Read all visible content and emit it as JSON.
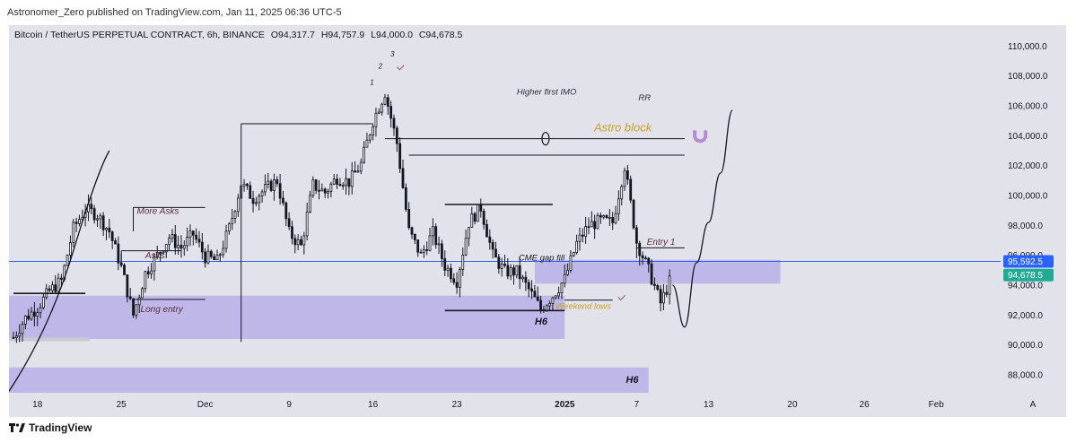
{
  "publisher": "Astronomer_Zero published on TradingView.com, Jan 11, 2025 06:36 UTC-5",
  "symbol": {
    "name": "Bitcoin / TetherUS PERPETUAL CONTRACT, 6h, BINANCE",
    "open": "O94,317.7",
    "high": "H94,757.9",
    "low": "L94,000.0",
    "close": "C94,678.5"
  },
  "footer": {
    "brand": "TradingView",
    "logo_icon": "tradingview-logo-icon"
  },
  "price_labels": {
    "line": {
      "text": "95,592.5",
      "value": 95592.5,
      "color": "#2962ff"
    },
    "last": {
      "text": "94,678.5",
      "value": 94678.5,
      "color": "#22ab94"
    }
  },
  "colors": {
    "up": "#ffffff",
    "down": "#131722",
    "zone": "#b3a8e6",
    "astro": "#c9a227",
    "magnet": "#b48ad6"
  },
  "annotations": {
    "more_asks": "More Asks",
    "asks": "Asks",
    "long_entry": "Long entry",
    "higher_first_imo": "Higher first IMO",
    "rr": "RR",
    "astro_block": "Astro block",
    "cme_gap_fill": "CME gap fill",
    "weekend_lows": "Weekend lows",
    "entry_1": "Entry 1",
    "h6_a": "H6",
    "h6_b": "H6",
    "wave_1": "1",
    "wave_2": "2",
    "wave_3": "3"
  },
  "chart_data": {
    "type": "candlestick",
    "title": "Bitcoin / TetherUS PERPETUAL CONTRACT, 6h, BINANCE",
    "x_ticks": [
      "18",
      "25",
      "Dec",
      "9",
      "16",
      "23",
      "2025",
      "7",
      "13",
      "20",
      "26",
      "Feb",
      "A"
    ],
    "y_ticks": [
      "110,000.0",
      "108,000.0",
      "106,000.0",
      "104,000.0",
      "102,000.0",
      "100,000.0",
      "98,000.0",
      "96,000.0",
      "94,000.0",
      "92,000.0",
      "90,000.0",
      "88,000.0"
    ],
    "y_tick_values": [
      110000,
      108000,
      106000,
      104000,
      102000,
      100000,
      98000,
      96000,
      94000,
      92000,
      90000,
      88000
    ],
    "ylim": [
      86800,
      111400
    ],
    "x_range": [
      "2024-11-16",
      "2025-02-06"
    ],
    "tick_dates": [
      "2024-11-18",
      "2024-11-25",
      "2024-12-02",
      "2024-12-09",
      "2024-12-16",
      "2024-12-23",
      "2025-01-01",
      "2025-01-07",
      "2025-01-13",
      "2025-01-20",
      "2025-01-26",
      "2025-02-01",
      "2025-02-06"
    ],
    "ohlc_points": [
      [
        "2024-11-16",
        90500
      ],
      [
        "2024-11-17",
        91800
      ],
      [
        "2024-11-18",
        92500
      ],
      [
        "2024-11-19",
        93600
      ],
      [
        "2024-11-20",
        94300
      ],
      [
        "2024-11-21",
        97800
      ],
      [
        "2024-11-22",
        99100
      ],
      [
        "2024-11-23",
        98700
      ],
      [
        "2024-11-24",
        97600
      ],
      [
        "2024-11-25",
        95200
      ],
      [
        "2024-11-26",
        92000
      ],
      [
        "2024-11-27",
        94800
      ],
      [
        "2024-11-28",
        96000
      ],
      [
        "2024-11-29",
        97200
      ],
      [
        "2024-11-30",
        96500
      ],
      [
        "2024-12-01",
        97400
      ],
      [
        "2024-12-02",
        95900
      ],
      [
        "2024-12-03",
        95600
      ],
      [
        "2024-12-04",
        97800
      ],
      [
        "2024-12-05",
        100800
      ],
      [
        "2024-12-06",
        99800
      ],
      [
        "2024-12-07",
        100400
      ],
      [
        "2024-12-08",
        101000
      ],
      [
        "2024-12-09",
        97500
      ],
      [
        "2024-12-10",
        96600
      ],
      [
        "2024-12-11",
        100700
      ],
      [
        "2024-12-12",
        100200
      ],
      [
        "2024-12-13",
        101200
      ],
      [
        "2024-12-14",
        100900
      ],
      [
        "2024-12-15",
        102100
      ],
      [
        "2024-12-16",
        105000
      ],
      [
        "2024-12-17",
        106900
      ],
      [
        "2024-12-18",
        103500
      ],
      [
        "2024-12-19",
        97600
      ],
      [
        "2024-12-20",
        96000
      ],
      [
        "2024-12-21",
        97500
      ],
      [
        "2024-12-22",
        95300
      ],
      [
        "2024-12-23",
        94300
      ],
      [
        "2024-12-24",
        98200
      ],
      [
        "2024-12-25",
        99200
      ],
      [
        "2024-12-26",
        96000
      ],
      [
        "2024-12-27",
        94900
      ],
      [
        "2024-12-28",
        94900
      ],
      [
        "2024-12-29",
        93700
      ],
      [
        "2024-12-30",
        92400
      ],
      [
        "2024-12-31",
        93300
      ],
      [
        "2025-01-01",
        94400
      ],
      [
        "2025-01-02",
        96800
      ],
      [
        "2025-01-03",
        98000
      ],
      [
        "2025-01-04",
        98300
      ],
      [
        "2025-01-05",
        98200
      ],
      [
        "2025-01-06",
        102000
      ],
      [
        "2025-01-07",
        96900
      ],
      [
        "2025-01-08",
        95000
      ],
      [
        "2025-01-09",
        92800
      ],
      [
        "2025-01-10",
        94700
      ]
    ],
    "levels": [
      {
        "name": "blue-price-line",
        "value": 95592.5
      }
    ],
    "projection": [
      [
        "2025-01-10",
        94000
      ],
      [
        "2025-01-11",
        91200
      ],
      [
        "2025-01-12",
        95500
      ],
      [
        "2025-01-13",
        98200
      ],
      [
        "2025-01-14",
        101500
      ],
      [
        "2025-01-15",
        105700
      ]
    ]
  }
}
